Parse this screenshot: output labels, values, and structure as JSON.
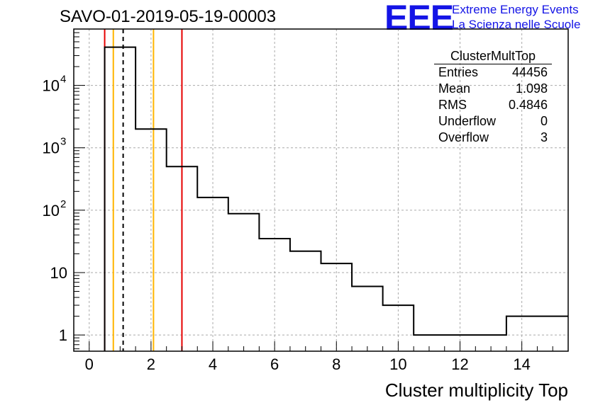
{
  "header": {
    "title": "SAVO-01-2019-05-19-00003",
    "logo_mark": "EEE",
    "logo_line1": "Extreme Energy Events",
    "logo_line2": "La Scienza nelle Scuole"
  },
  "stats": {
    "name": "ClusterMultTop",
    "rows": [
      {
        "label": "Entries",
        "value": "44456"
      },
      {
        "label": "Mean",
        "value": "1.098"
      },
      {
        "label": "RMS",
        "value": "0.4846"
      },
      {
        "label": "Underflow",
        "value": "0"
      },
      {
        "label": "Overflow",
        "value": "3"
      }
    ]
  },
  "chart_data": {
    "type": "histogram",
    "title": "SAVO-01-2019-05-19-00003",
    "xlabel": "Cluster multiplicity Top",
    "ylabel": "",
    "xlim": [
      -0.5,
      15.5
    ],
    "ylim": [
      0.55,
      80000
    ],
    "yscale": "log",
    "grid": true,
    "bin_edges": [
      0.5,
      1.5,
      2.5,
      3.5,
      4.5,
      5.5,
      6.5,
      7.5,
      8.5,
      9.5,
      10.5,
      11.5,
      12.5,
      13.5,
      14.5,
      15.5
    ],
    "counts": [
      41000,
      2000,
      500,
      160,
      88,
      35,
      22,
      14,
      6,
      3,
      1,
      1,
      1,
      2,
      2
    ],
    "x_ticks": [
      0,
      2,
      4,
      6,
      8,
      10,
      12,
      14
    ],
    "x_tick_labels": [
      "0",
      "2",
      "4",
      "6",
      "8",
      "10",
      "12",
      "14"
    ],
    "y_ticks": [
      1,
      10,
      100,
      1000,
      10000
    ],
    "y_tick_labels": [
      {
        "base": "1",
        "exp": ""
      },
      {
        "base": "10",
        "exp": ""
      },
      {
        "base": "10",
        "exp": "2"
      },
      {
        "base": "10",
        "exp": "3"
      },
      {
        "base": "10",
        "exp": "4"
      }
    ],
    "vlines": [
      {
        "x": 0.5,
        "color": "#e60000",
        "style": "solid"
      },
      {
        "x": 0.78,
        "color": "#ffb400",
        "style": "solid"
      },
      {
        "x": 1.098,
        "color": "#000000",
        "style": "dashed"
      },
      {
        "x": 2.08,
        "color": "#ffb400",
        "style": "solid"
      },
      {
        "x": 3.0,
        "color": "#e60000",
        "style": "solid"
      }
    ],
    "colors": {
      "histogram": "#000000",
      "grid": "#aaaaaa"
    }
  }
}
